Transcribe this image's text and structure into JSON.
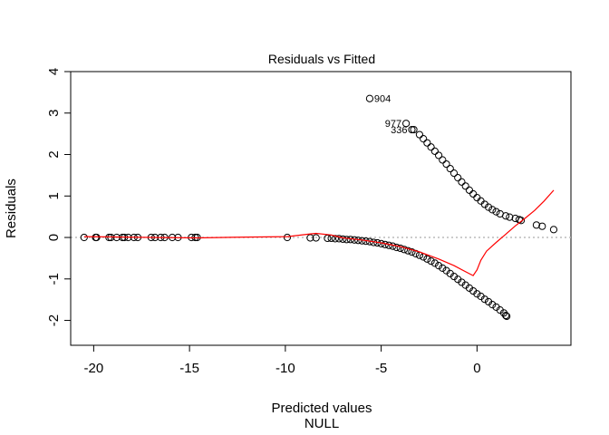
{
  "chart_data": {
    "type": "scatter",
    "title": "Residuals vs Fitted",
    "xlabel": "Predicted values",
    "xlabel_sub": "NULL",
    "ylabel": "Residuals",
    "xlim": [
      -21.2,
      4.9
    ],
    "ylim": [
      -2.6,
      4.0
    ],
    "xticks": [
      -20,
      -15,
      -10,
      -5,
      0
    ],
    "yticks": [
      -2,
      -1,
      0,
      1,
      2,
      3,
      4
    ],
    "reference_line": {
      "y": 0,
      "style": "dotted",
      "color": "#bbbbbb"
    },
    "point_color": "#000000",
    "smoother_color": "#ff0000",
    "points": [
      [
        -20.5,
        0.0
      ],
      [
        -19.9,
        0.0
      ],
      [
        -19.85,
        0.0
      ],
      [
        -19.2,
        0.0
      ],
      [
        -19.1,
        0.0
      ],
      [
        -18.8,
        0.0
      ],
      [
        -18.5,
        0.0
      ],
      [
        -18.4,
        0.0
      ],
      [
        -18.2,
        0.0
      ],
      [
        -17.9,
        0.0
      ],
      [
        -17.7,
        0.0
      ],
      [
        -17.0,
        0.0
      ],
      [
        -16.8,
        0.0
      ],
      [
        -16.5,
        0.0
      ],
      [
        -16.3,
        0.0
      ],
      [
        -15.9,
        0.0
      ],
      [
        -15.6,
        0.0
      ],
      [
        -14.9,
        0.0
      ],
      [
        -14.7,
        0.0
      ],
      [
        -14.6,
        0.0
      ],
      [
        -9.9,
        0.0
      ],
      [
        -8.7,
        -0.01
      ],
      [
        -8.4,
        -0.01
      ],
      [
        -7.8,
        -0.02
      ],
      [
        -7.6,
        -0.02
      ],
      [
        -7.4,
        -0.03
      ],
      [
        -7.2,
        -0.03
      ],
      [
        -7.0,
        -0.04
      ],
      [
        -6.8,
        -0.05
      ],
      [
        -6.6,
        -0.05
      ],
      [
        -6.4,
        -0.06
      ],
      [
        -6.2,
        -0.07
      ],
      [
        -6.0,
        -0.08
      ],
      [
        -5.8,
        -0.09
      ],
      [
        -5.6,
        -0.1
      ],
      [
        -5.4,
        -0.12
      ],
      [
        -5.2,
        -0.13
      ],
      [
        -5.0,
        -0.15
      ],
      [
        -4.8,
        -0.17
      ],
      [
        -4.6,
        -0.19
      ],
      [
        -4.4,
        -0.21
      ],
      [
        -4.2,
        -0.24
      ],
      [
        -4.0,
        -0.26
      ],
      [
        -3.8,
        -0.29
      ],
      [
        -3.6,
        -0.32
      ],
      [
        -3.4,
        -0.35
      ],
      [
        -3.2,
        -0.39
      ],
      [
        -3.0,
        -0.43
      ],
      [
        -2.8,
        -0.47
      ],
      [
        -2.6,
        -0.52
      ],
      [
        -2.4,
        -0.57
      ],
      [
        -2.2,
        -0.62
      ],
      [
        -2.0,
        -0.68
      ],
      [
        -1.8,
        -0.74
      ],
      [
        -1.6,
        -0.8
      ],
      [
        -1.4,
        -0.87
      ],
      [
        -1.2,
        -0.94
      ],
      [
        -1.0,
        -1.01
      ],
      [
        -0.8,
        -1.08
      ],
      [
        -0.6,
        -1.15
      ],
      [
        -0.4,
        -1.22
      ],
      [
        -0.2,
        -1.29
      ],
      [
        0.0,
        -1.36
      ],
      [
        0.2,
        -1.42
      ],
      [
        0.4,
        -1.49
      ],
      [
        0.6,
        -1.55
      ],
      [
        0.8,
        -1.62
      ],
      [
        1.0,
        -1.68
      ],
      [
        1.2,
        -1.75
      ],
      [
        1.4,
        -1.82
      ],
      [
        1.5,
        -1.88
      ],
      [
        1.55,
        -1.9
      ],
      [
        -3.3,
        2.6
      ],
      [
        -3.0,
        2.48
      ],
      [
        -2.8,
        2.38
      ],
      [
        -2.6,
        2.28
      ],
      [
        -2.4,
        2.18
      ],
      [
        -2.2,
        2.08
      ],
      [
        -2.0,
        1.98
      ],
      [
        -1.8,
        1.87
      ],
      [
        -1.6,
        1.77
      ],
      [
        -1.4,
        1.66
      ],
      [
        -1.2,
        1.55
      ],
      [
        -1.0,
        1.44
      ],
      [
        -0.8,
        1.34
      ],
      [
        -0.6,
        1.24
      ],
      [
        -0.4,
        1.14
      ],
      [
        -0.2,
        1.05
      ],
      [
        0.0,
        0.96
      ],
      [
        0.2,
        0.88
      ],
      [
        0.4,
        0.8
      ],
      [
        0.6,
        0.73
      ],
      [
        0.8,
        0.67
      ],
      [
        1.0,
        0.62
      ],
      [
        1.2,
        0.57
      ],
      [
        1.5,
        0.52
      ],
      [
        1.7,
        0.49
      ],
      [
        2.0,
        0.46
      ],
      [
        2.2,
        0.43
      ],
      [
        2.3,
        0.41
      ],
      [
        3.1,
        0.3
      ],
      [
        3.4,
        0.27
      ],
      [
        4.0,
        0.19
      ]
    ],
    "labeled_points": [
      {
        "label": "904",
        "x": -5.6,
        "y": 3.35
      },
      {
        "label": "977",
        "x": -3.7,
        "y": 2.75
      },
      {
        "label": "336",
        "x": -3.4,
        "y": 2.6
      }
    ],
    "smoother": [
      [
        -20.5,
        0.02
      ],
      [
        -17.0,
        0.0
      ],
      [
        -14.6,
        -0.01
      ],
      [
        -12.0,
        0.01
      ],
      [
        -9.9,
        0.02
      ],
      [
        -8.8,
        0.08
      ],
      [
        -8.4,
        0.1
      ],
      [
        -7.6,
        0.06
      ],
      [
        -7.0,
        -0.01
      ],
      [
        -6.0,
        -0.06
      ],
      [
        -5.0,
        -0.13
      ],
      [
        -4.0,
        -0.22
      ],
      [
        -3.0,
        -0.35
      ],
      [
        -2.0,
        -0.52
      ],
      [
        -1.2,
        -0.68
      ],
      [
        -0.5,
        -0.85
      ],
      [
        -0.2,
        -0.92
      ],
      [
        0.0,
        -0.78
      ],
      [
        0.2,
        -0.55
      ],
      [
        0.5,
        -0.33
      ],
      [
        1.0,
        -0.12
      ],
      [
        1.5,
        0.08
      ],
      [
        2.0,
        0.28
      ],
      [
        2.5,
        0.46
      ],
      [
        3.0,
        0.65
      ],
      [
        3.5,
        0.88
      ],
      [
        4.0,
        1.14
      ]
    ]
  }
}
